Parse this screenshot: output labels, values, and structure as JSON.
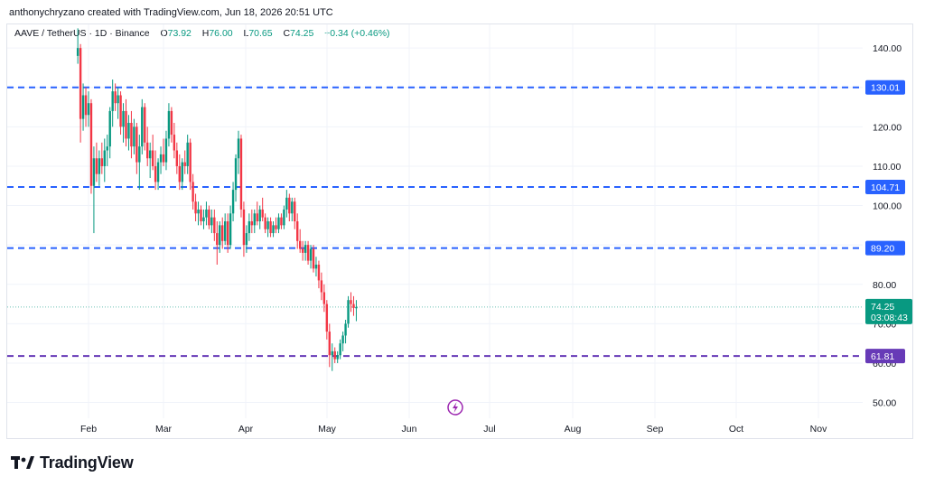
{
  "header": {
    "attribution": "anthonychryzano created with TradingView.com, Jun 18, 2026 20:51 UTC"
  },
  "legend": {
    "symbol": "AAVE / TetherUS · 1D · Binance",
    "o_label": "O",
    "o_value": "73.92",
    "h_label": "H",
    "h_value": "76.00",
    "l_label": "L",
    "l_value": "70.65",
    "c_label": "C",
    "c_value": "74.25",
    "change": "+0.34 (+0.46%)"
  },
  "branding": {
    "name": "TradingView"
  },
  "colors": {
    "up": "#089981",
    "down": "#f23645",
    "hline_blue": "#2962ff",
    "hline_purple": "#673ab7",
    "price_badge": "#089981"
  },
  "chart_data": {
    "type": "candlestick",
    "ylim": [
      46,
      146
    ],
    "y_ticks": [
      "50.00",
      "60.00",
      "70.00",
      "80.00",
      "90.00",
      "100.00",
      "110.00",
      "120.00",
      "130.00",
      "140.00"
    ],
    "x_ticks": [
      "Feb",
      "Mar",
      "Apr",
      "May",
      "Jun",
      "Jul",
      "Aug",
      "Sep",
      "Oct",
      "Nov"
    ],
    "levels": [
      {
        "value": 130.01,
        "label": "130.01",
        "color": "#2962ff"
      },
      {
        "value": 104.71,
        "label": "104.71",
        "color": "#2962ff"
      },
      {
        "value": 89.2,
        "label": "89.20",
        "color": "#2962ff"
      },
      {
        "value": 61.81,
        "label": "61.81",
        "color": "#673ab7"
      }
    ],
    "last_price": {
      "value": 74.25,
      "label": "74.25",
      "countdown": "03:08:43"
    },
    "candles": [
      {
        "date": "2026-01-28",
        "o": 138,
        "h": 145,
        "l": 136,
        "c": 140
      },
      {
        "date": "2026-01-29",
        "o": 140,
        "h": 141,
        "l": 116,
        "c": 122
      },
      {
        "date": "2026-01-30",
        "o": 122,
        "h": 131,
        "l": 119,
        "c": 128
      },
      {
        "date": "2026-01-31",
        "o": 128,
        "h": 130,
        "l": 120,
        "c": 123
      },
      {
        "date": "2026-02-01",
        "o": 123,
        "h": 129,
        "l": 120,
        "c": 126
      },
      {
        "date": "2026-02-02",
        "o": 126,
        "h": 127,
        "l": 103,
        "c": 105
      },
      {
        "date": "2026-02-03",
        "o": 105,
        "h": 115,
        "l": 93,
        "c": 112
      },
      {
        "date": "2026-02-04",
        "o": 112,
        "h": 116,
        "l": 106,
        "c": 108
      },
      {
        "date": "2026-02-05",
        "o": 108,
        "h": 114,
        "l": 105,
        "c": 112
      },
      {
        "date": "2026-02-06",
        "o": 112,
        "h": 116,
        "l": 108,
        "c": 110
      },
      {
        "date": "2026-02-07",
        "o": 110,
        "h": 117,
        "l": 106,
        "c": 114
      },
      {
        "date": "2026-02-08",
        "o": 114,
        "h": 118,
        "l": 110,
        "c": 115
      },
      {
        "date": "2026-02-09",
        "o": 115,
        "h": 125,
        "l": 112,
        "c": 124
      },
      {
        "date": "2026-02-10",
        "o": 124,
        "h": 132,
        "l": 120,
        "c": 129
      },
      {
        "date": "2026-02-11",
        "o": 129,
        "h": 131,
        "l": 124,
        "c": 126
      },
      {
        "date": "2026-02-12",
        "o": 126,
        "h": 130,
        "l": 122,
        "c": 128
      },
      {
        "date": "2026-02-13",
        "o": 128,
        "h": 129,
        "l": 118,
        "c": 120
      },
      {
        "date": "2026-02-14",
        "o": 120,
        "h": 126,
        "l": 116,
        "c": 124
      },
      {
        "date": "2026-02-15",
        "o": 124,
        "h": 127,
        "l": 115,
        "c": 117
      },
      {
        "date": "2026-02-16",
        "o": 117,
        "h": 123,
        "l": 114,
        "c": 121
      },
      {
        "date": "2026-02-17",
        "o": 121,
        "h": 124,
        "l": 112,
        "c": 115
      },
      {
        "date": "2026-02-18",
        "o": 115,
        "h": 122,
        "l": 113,
        "c": 120
      },
      {
        "date": "2026-02-19",
        "o": 120,
        "h": 121,
        "l": 108,
        "c": 111
      },
      {
        "date": "2026-02-20",
        "o": 111,
        "h": 118,
        "l": 104,
        "c": 115
      },
      {
        "date": "2026-02-21",
        "o": 115,
        "h": 127,
        "l": 113,
        "c": 125
      },
      {
        "date": "2026-02-22",
        "o": 125,
        "h": 126,
        "l": 114,
        "c": 116
      },
      {
        "date": "2026-02-23",
        "o": 116,
        "h": 120,
        "l": 110,
        "c": 112
      },
      {
        "date": "2026-02-24",
        "o": 112,
        "h": 116,
        "l": 107,
        "c": 114
      },
      {
        "date": "2026-02-25",
        "o": 114,
        "h": 118,
        "l": 109,
        "c": 110
      },
      {
        "date": "2026-02-26",
        "o": 110,
        "h": 114,
        "l": 104,
        "c": 106
      },
      {
        "date": "2026-02-27",
        "o": 106,
        "h": 112,
        "l": 104,
        "c": 111
      },
      {
        "date": "2026-02-28",
        "o": 111,
        "h": 115,
        "l": 108,
        "c": 113
      },
      {
        "date": "2026-03-01",
        "o": 113,
        "h": 117,
        "l": 110,
        "c": 111
      },
      {
        "date": "2026-03-02",
        "o": 111,
        "h": 119,
        "l": 109,
        "c": 117
      },
      {
        "date": "2026-03-03",
        "o": 117,
        "h": 126,
        "l": 115,
        "c": 124
      },
      {
        "date": "2026-03-04",
        "o": 124,
        "h": 125,
        "l": 116,
        "c": 118
      },
      {
        "date": "2026-03-05",
        "o": 118,
        "h": 121,
        "l": 112,
        "c": 114
      },
      {
        "date": "2026-03-06",
        "o": 114,
        "h": 116,
        "l": 108,
        "c": 110
      },
      {
        "date": "2026-03-07",
        "o": 110,
        "h": 113,
        "l": 104,
        "c": 106
      },
      {
        "date": "2026-03-08",
        "o": 106,
        "h": 112,
        "l": 104,
        "c": 111
      },
      {
        "date": "2026-03-09",
        "o": 111,
        "h": 114,
        "l": 108,
        "c": 110
      },
      {
        "date": "2026-03-10",
        "o": 110,
        "h": 118,
        "l": 108,
        "c": 116
      },
      {
        "date": "2026-03-11",
        "o": 116,
        "h": 117,
        "l": 104,
        "c": 106
      },
      {
        "date": "2026-03-12",
        "o": 106,
        "h": 108,
        "l": 99,
        "c": 101
      },
      {
        "date": "2026-03-13",
        "o": 101,
        "h": 103,
        "l": 96,
        "c": 98
      },
      {
        "date": "2026-03-14",
        "o": 98,
        "h": 101,
        "l": 95,
        "c": 99
      },
      {
        "date": "2026-03-15",
        "o": 99,
        "h": 100,
        "l": 95,
        "c": 96
      },
      {
        "date": "2026-03-16",
        "o": 96,
        "h": 99,
        "l": 94,
        "c": 97
      },
      {
        "date": "2026-03-17",
        "o": 97,
        "h": 101,
        "l": 95,
        "c": 99
      },
      {
        "date": "2026-03-18",
        "o": 99,
        "h": 100,
        "l": 94,
        "c": 95
      },
      {
        "date": "2026-03-19",
        "o": 95,
        "h": 99,
        "l": 93,
        "c": 97
      },
      {
        "date": "2026-03-20",
        "o": 97,
        "h": 99,
        "l": 91,
        "c": 93
      },
      {
        "date": "2026-03-21",
        "o": 93,
        "h": 96,
        "l": 85,
        "c": 90
      },
      {
        "date": "2026-03-22",
        "o": 90,
        "h": 96,
        "l": 88,
        "c": 95
      },
      {
        "date": "2026-03-23",
        "o": 95,
        "h": 97,
        "l": 89,
        "c": 91
      },
      {
        "date": "2026-03-24",
        "o": 91,
        "h": 98,
        "l": 90,
        "c": 96
      },
      {
        "date": "2026-03-25",
        "o": 96,
        "h": 98,
        "l": 88,
        "c": 90
      },
      {
        "date": "2026-03-26",
        "o": 90,
        "h": 100,
        "l": 89,
        "c": 98
      },
      {
        "date": "2026-03-27",
        "o": 98,
        "h": 106,
        "l": 96,
        "c": 104
      },
      {
        "date": "2026-03-28",
        "o": 104,
        "h": 113,
        "l": 101,
        "c": 112
      },
      {
        "date": "2026-03-29",
        "o": 112,
        "h": 119,
        "l": 108,
        "c": 117
      },
      {
        "date": "2026-03-30",
        "o": 117,
        "h": 118,
        "l": 97,
        "c": 99
      },
      {
        "date": "2026-03-31",
        "o": 99,
        "h": 101,
        "l": 87,
        "c": 90
      },
      {
        "date": "2026-04-01",
        "o": 90,
        "h": 95,
        "l": 88,
        "c": 93
      },
      {
        "date": "2026-04-02",
        "o": 93,
        "h": 98,
        "l": 91,
        "c": 96
      },
      {
        "date": "2026-04-03",
        "o": 96,
        "h": 99,
        "l": 93,
        "c": 95
      },
      {
        "date": "2026-04-04",
        "o": 95,
        "h": 99,
        "l": 93,
        "c": 98
      },
      {
        "date": "2026-04-05",
        "o": 98,
        "h": 101,
        "l": 95,
        "c": 96
      },
      {
        "date": "2026-04-06",
        "o": 96,
        "h": 100,
        "l": 94,
        "c": 99
      },
      {
        "date": "2026-04-07",
        "o": 99,
        "h": 102,
        "l": 96,
        "c": 97
      },
      {
        "date": "2026-04-08",
        "o": 97,
        "h": 98,
        "l": 93,
        "c": 94
      },
      {
        "date": "2026-04-09",
        "o": 94,
        "h": 97,
        "l": 92,
        "c": 96
      },
      {
        "date": "2026-04-10",
        "o": 96,
        "h": 97,
        "l": 92,
        "c": 93
      },
      {
        "date": "2026-04-11",
        "o": 93,
        "h": 96,
        "l": 92,
        "c": 95
      },
      {
        "date": "2026-04-12",
        "o": 95,
        "h": 97,
        "l": 93,
        "c": 94
      },
      {
        "date": "2026-04-13",
        "o": 94,
        "h": 98,
        "l": 93,
        "c": 97
      },
      {
        "date": "2026-04-14",
        "o": 97,
        "h": 98,
        "l": 94,
        "c": 95
      },
      {
        "date": "2026-04-15",
        "o": 95,
        "h": 100,
        "l": 94,
        "c": 99
      },
      {
        "date": "2026-04-16",
        "o": 99,
        "h": 104,
        "l": 97,
        "c": 102
      },
      {
        "date": "2026-04-17",
        "o": 102,
        "h": 103,
        "l": 96,
        "c": 98
      },
      {
        "date": "2026-04-18",
        "o": 98,
        "h": 102,
        "l": 96,
        "c": 101
      },
      {
        "date": "2026-04-19",
        "o": 101,
        "h": 102,
        "l": 94,
        "c": 96
      },
      {
        "date": "2026-04-20",
        "o": 96,
        "h": 98,
        "l": 89,
        "c": 91
      },
      {
        "date": "2026-04-21",
        "o": 91,
        "h": 94,
        "l": 88,
        "c": 89
      },
      {
        "date": "2026-04-22",
        "o": 89,
        "h": 91,
        "l": 86,
        "c": 88
      },
      {
        "date": "2026-04-23",
        "o": 88,
        "h": 91,
        "l": 86,
        "c": 90
      },
      {
        "date": "2026-04-24",
        "o": 90,
        "h": 91,
        "l": 85,
        "c": 86
      },
      {
        "date": "2026-04-25",
        "o": 86,
        "h": 90,
        "l": 84,
        "c": 89
      },
      {
        "date": "2026-04-26",
        "o": 89,
        "h": 90,
        "l": 83,
        "c": 84
      },
      {
        "date": "2026-04-27",
        "o": 84,
        "h": 87,
        "l": 82,
        "c": 85
      },
      {
        "date": "2026-04-28",
        "o": 85,
        "h": 86,
        "l": 79,
        "c": 81
      },
      {
        "date": "2026-04-29",
        "o": 81,
        "h": 83,
        "l": 76,
        "c": 78
      },
      {
        "date": "2026-04-30",
        "o": 78,
        "h": 80,
        "l": 73,
        "c": 75
      },
      {
        "date": "2026-05-01",
        "o": 75,
        "h": 76,
        "l": 66,
        "c": 68
      },
      {
        "date": "2026-05-02",
        "o": 68,
        "h": 70,
        "l": 59,
        "c": 62
      },
      {
        "date": "2026-05-03",
        "o": 62,
        "h": 65,
        "l": 58,
        "c": 63
      },
      {
        "date": "2026-05-04",
        "o": 63,
        "h": 64,
        "l": 60,
        "c": 61
      },
      {
        "date": "2026-05-05",
        "o": 61,
        "h": 63,
        "l": 60,
        "c": 62
      },
      {
        "date": "2026-05-06",
        "o": 62,
        "h": 66,
        "l": 61,
        "c": 65
      },
      {
        "date": "2026-05-07",
        "o": 65,
        "h": 68,
        "l": 63,
        "c": 67
      },
      {
        "date": "2026-05-08",
        "o": 67,
        "h": 71,
        "l": 65,
        "c": 70
      },
      {
        "date": "2026-05-09",
        "o": 70,
        "h": 77,
        "l": 69,
        "c": 76
      },
      {
        "date": "2026-05-10",
        "o": 76,
        "h": 78,
        "l": 73,
        "c": 75
      },
      {
        "date": "2026-05-11",
        "o": 75,
        "h": 77,
        "l": 72,
        "c": 74
      },
      {
        "date": "2026-05-12",
        "o": 73.92,
        "h": 76,
        "l": 70.65,
        "c": 74.25
      }
    ]
  }
}
